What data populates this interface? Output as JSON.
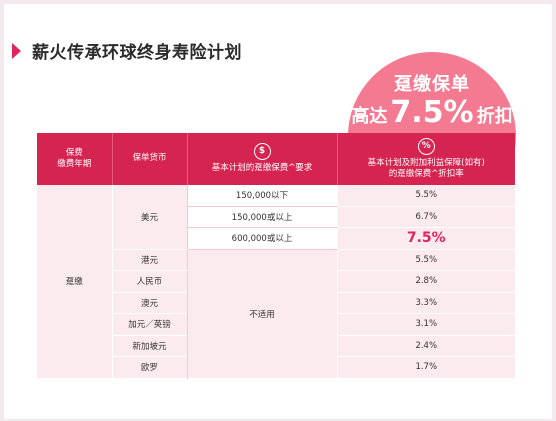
{
  "title": "薪火传承环球终身寿险计划",
  "promo": {
    "line1": "趸缴保单",
    "line2_pre": "高达",
    "line2_rate": "7.5%",
    "line2_post": "折扣"
  },
  "table": {
    "headers": {
      "col1_line1": "保费",
      "col1_line2": "缴费年期",
      "col2": "保单货币",
      "col3_icon": "$",
      "col3": "基本计划的趸缴保费^要求",
      "col4_icon": "%",
      "col4_line1": "基本计划及附加利益保障(如有)",
      "col4_line2": "的趸缴保费^折扣率"
    },
    "term": "趸缴",
    "usd": {
      "currency": "美元",
      "tiers": [
        {
          "requirement": "150,000以下",
          "rate": "5.5%"
        },
        {
          "requirement": "150,000或以上",
          "rate": "6.7%"
        },
        {
          "requirement": "600,000或以上",
          "rate": "7.5%"
        }
      ]
    },
    "not_applicable": "不适用",
    "others": [
      {
        "currency": "港元",
        "rate": "5.5%"
      },
      {
        "currency": "人民币",
        "rate": "2.8%"
      },
      {
        "currency": "澳元",
        "rate": "3.3%"
      },
      {
        "currency": "加元／英镑",
        "rate": "3.1%"
      },
      {
        "currency": "新加坡元",
        "rate": "2.4%"
      },
      {
        "currency": "欧罗",
        "rate": "1.7%"
      }
    ]
  }
}
